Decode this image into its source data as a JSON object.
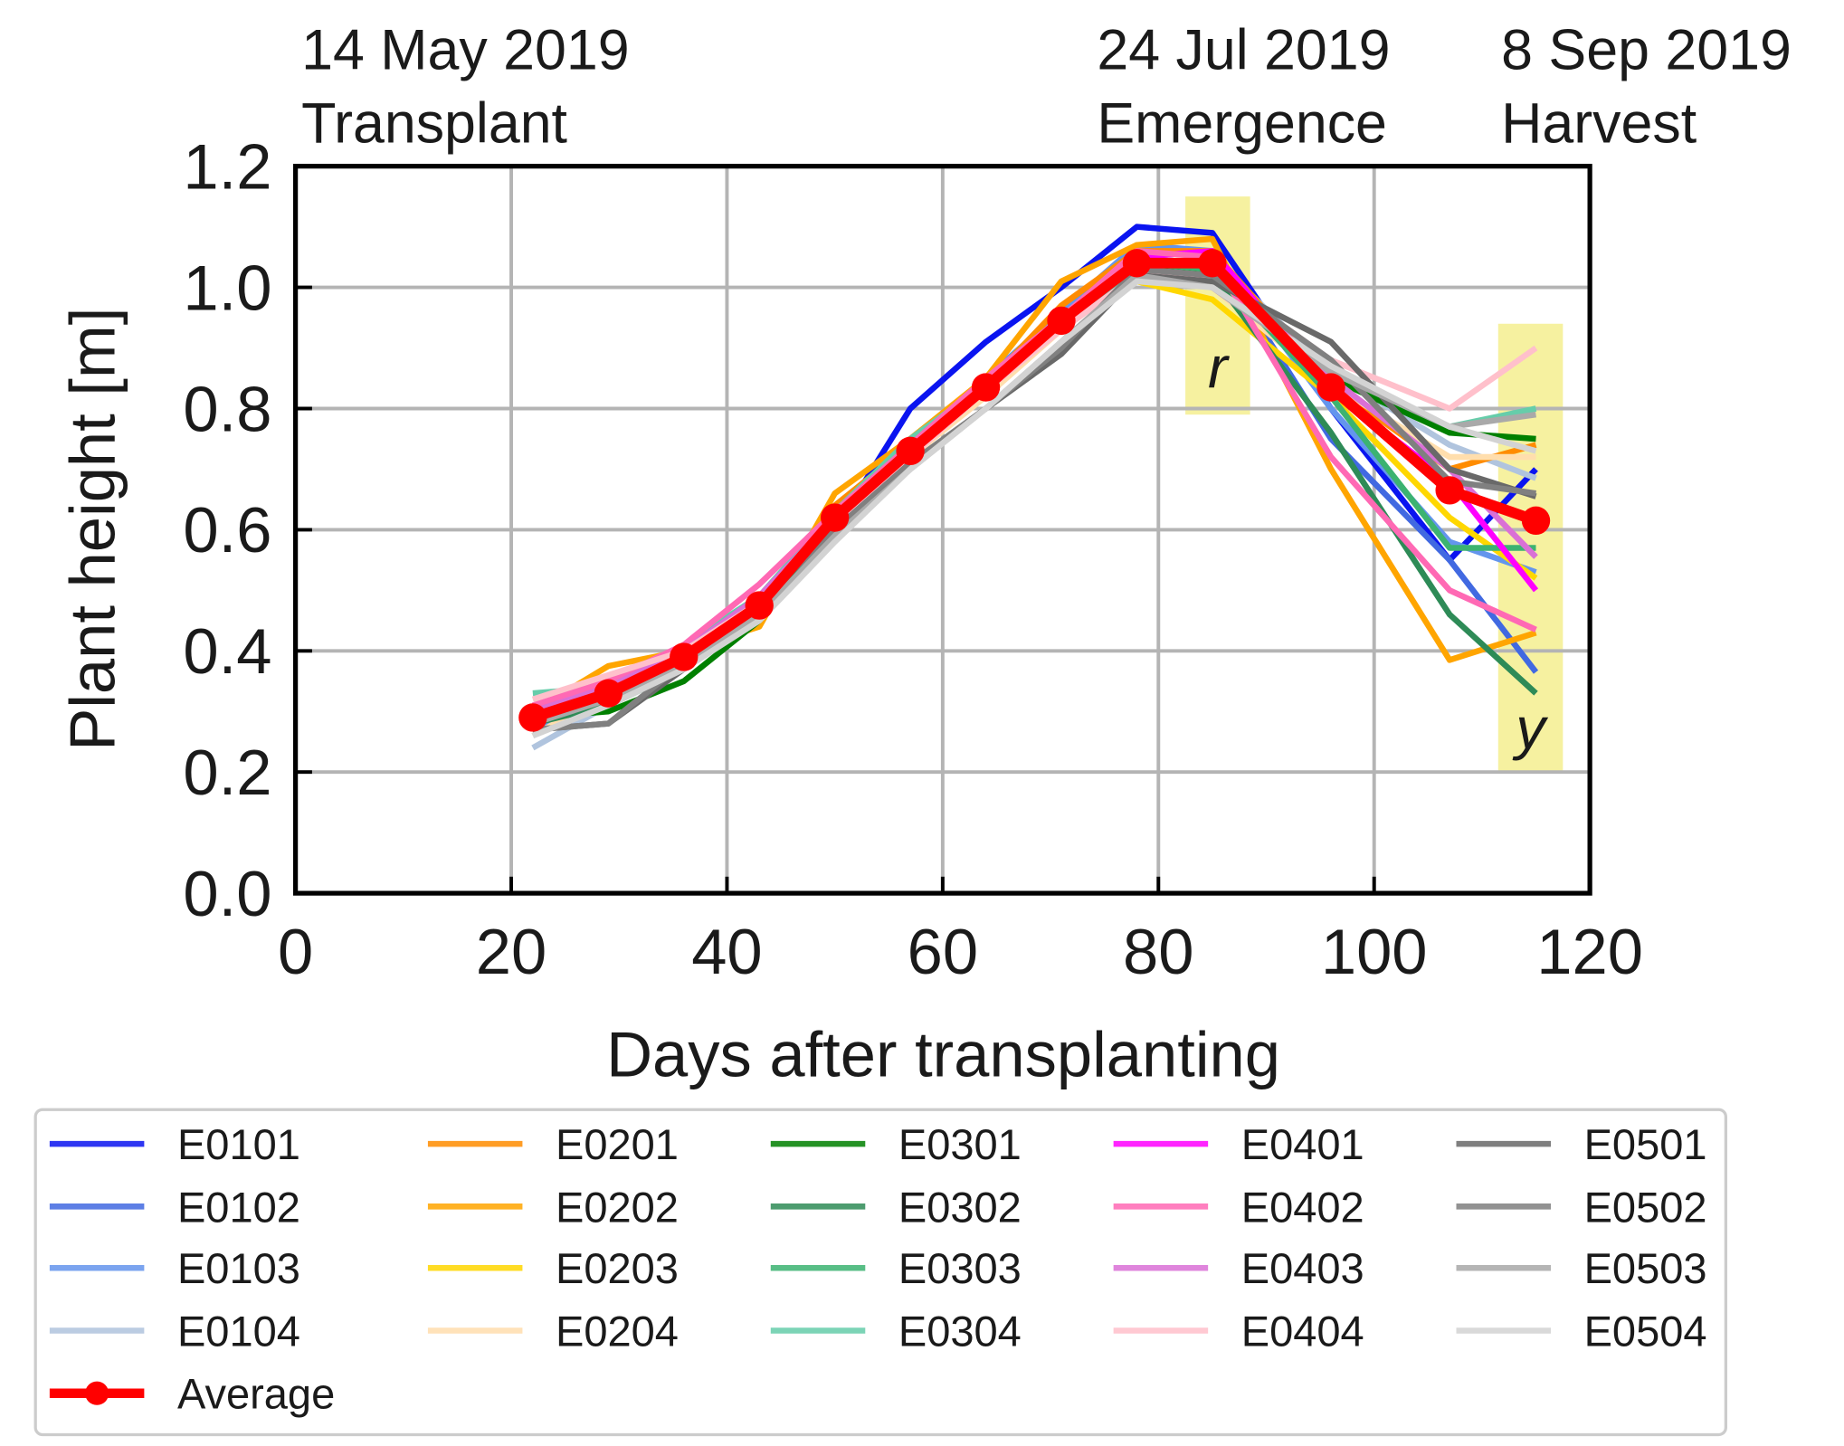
{
  "chart_data": {
    "type": "line",
    "xlabel": "Days after transplanting",
    "ylabel": "Plant height [m]",
    "xlim": [
      0,
      120
    ],
    "ylim": [
      0,
      1.2
    ],
    "xticks": [
      0,
      20,
      40,
      60,
      80,
      100,
      120
    ],
    "yticks": [
      "0.0",
      "0.2",
      "0.4",
      "0.6",
      "0.8",
      "1.0",
      "1.2"
    ],
    "grid": true,
    "legend_position": "bottom",
    "top_annotations": [
      {
        "date": "14 May 2019",
        "event": "Transplant"
      },
      {
        "date": "24 Jul 2019",
        "event": "Emergence"
      },
      {
        "date": "8 Sep 2019",
        "event": "Harvest"
      }
    ],
    "highlight_regions": [
      {
        "label": "r",
        "x_range": [
          82.5,
          88.5
        ],
        "y_range": [
          0.79,
          1.15
        ],
        "color": "#f5f096"
      },
      {
        "label": "y",
        "x_range": [
          111.5,
          117.5
        ],
        "y_range": [
          0.2,
          0.94
        ],
        "color": "#f5f096"
      }
    ],
    "x": [
      22,
      29,
      36,
      43,
      50,
      57,
      64,
      71,
      78,
      85,
      96,
      107,
      115
    ],
    "series": [
      {
        "name": "E0101",
        "color": "#0a14f0",
        "values": [
          0.28,
          0.32,
          0.39,
          0.47,
          0.6,
          0.8,
          0.91,
          1.0,
          1.1,
          1.09,
          0.8,
          0.55,
          0.7
        ]
      },
      {
        "name": "E0102",
        "color": "#4169e1",
        "values": [
          0.28,
          0.31,
          0.38,
          0.46,
          0.6,
          0.73,
          0.84,
          0.95,
          1.05,
          1.06,
          0.75,
          0.55,
          0.365
        ]
      },
      {
        "name": "E0103",
        "color": "#6495ed",
        "values": [
          0.27,
          0.32,
          0.38,
          0.47,
          0.61,
          0.74,
          0.85,
          0.96,
          1.07,
          1.06,
          0.8,
          0.58,
          0.53
        ]
      },
      {
        "name": "E0104",
        "color": "#b0c4de",
        "values": [
          0.24,
          0.31,
          0.38,
          0.46,
          0.6,
          0.72,
          0.83,
          0.95,
          1.06,
          1.05,
          0.86,
          0.74,
          0.685
        ]
      },
      {
        "name": "E0201",
        "color": "#ff8c00",
        "values": [
          0.29,
          0.34,
          0.39,
          0.45,
          0.64,
          0.74,
          0.84,
          0.97,
          1.06,
          1.06,
          0.84,
          0.7,
          0.74
        ]
      },
      {
        "name": "E0202",
        "color": "#ffa500",
        "values": [
          0.3,
          0.375,
          0.4,
          0.44,
          0.66,
          0.75,
          0.85,
          1.01,
          1.07,
          1.08,
          0.7,
          0.385,
          0.43
        ]
      },
      {
        "name": "E0203",
        "color": "#ffd700",
        "values": [
          0.29,
          0.34,
          0.39,
          0.47,
          0.62,
          0.73,
          0.83,
          0.94,
          1.01,
          0.98,
          0.82,
          0.62,
          0.52
        ]
      },
      {
        "name": "E0204",
        "color": "#ffdead",
        "values": [
          0.26,
          0.33,
          0.38,
          0.47,
          0.61,
          0.72,
          0.82,
          0.93,
          1.02,
          1.0,
          0.84,
          0.72,
          0.72
        ]
      },
      {
        "name": "E0301",
        "color": "#008000",
        "values": [
          0.29,
          0.3,
          0.35,
          0.45,
          0.61,
          0.73,
          0.83,
          0.94,
          1.03,
          1.03,
          0.85,
          0.76,
          0.75
        ]
      },
      {
        "name": "E0302",
        "color": "#2e8b57",
        "values": [
          0.28,
          0.31,
          0.37,
          0.46,
          0.61,
          0.73,
          0.83,
          0.94,
          1.03,
          1.02,
          0.76,
          0.46,
          0.33
        ]
      },
      {
        "name": "E0303",
        "color": "#3cb371",
        "values": [
          0.3,
          0.33,
          0.4,
          0.48,
          0.62,
          0.74,
          0.84,
          0.95,
          1.04,
          1.03,
          0.82,
          0.57,
          0.57
        ]
      },
      {
        "name": "E0304",
        "color": "#66cdaa",
        "values": [
          0.33,
          0.34,
          0.41,
          0.49,
          0.63,
          0.75,
          0.84,
          0.94,
          1.03,
          1.02,
          0.86,
          0.77,
          0.8
        ]
      },
      {
        "name": "E0401",
        "color": "#ff00ff",
        "values": [
          0.3,
          0.34,
          0.4,
          0.49,
          0.62,
          0.73,
          0.84,
          0.95,
          1.05,
          1.06,
          0.83,
          0.68,
          0.5
        ]
      },
      {
        "name": "E0402",
        "color": "#ff69b4",
        "values": [
          0.31,
          0.35,
          0.41,
          0.51,
          0.63,
          0.74,
          0.85,
          0.95,
          1.06,
          1.05,
          0.72,
          0.5,
          0.435
        ]
      },
      {
        "name": "E0403",
        "color": "#da70d6",
        "values": [
          0.3,
          0.34,
          0.4,
          0.49,
          0.62,
          0.73,
          0.84,
          0.95,
          1.04,
          1.04,
          0.85,
          0.7,
          0.555
        ]
      },
      {
        "name": "E0404",
        "color": "#ffc0cb",
        "values": [
          0.32,
          0.36,
          0.4,
          0.48,
          0.61,
          0.72,
          0.83,
          0.93,
          1.02,
          1.02,
          0.88,
          0.8,
          0.9
        ]
      },
      {
        "name": "E0501",
        "color": "#696969",
        "values": [
          0.27,
          0.28,
          0.37,
          0.48,
          0.6,
          0.71,
          0.8,
          0.89,
          1.02,
          1.01,
          0.91,
          0.7,
          0.655
        ]
      },
      {
        "name": "E0502",
        "color": "#808080",
        "values": [
          0.27,
          0.28,
          0.38,
          0.48,
          0.6,
          0.71,
          0.8,
          0.9,
          1.03,
          1.02,
          0.88,
          0.68,
          0.66
        ]
      },
      {
        "name": "E0503",
        "color": "#a9a9a9",
        "values": [
          0.28,
          0.32,
          0.38,
          0.46,
          0.59,
          0.7,
          0.8,
          0.91,
          1.02,
          1.0,
          0.86,
          0.77,
          0.79
        ]
      },
      {
        "name": "E0504",
        "color": "#d3d3d3",
        "values": [
          0.26,
          0.31,
          0.37,
          0.45,
          0.58,
          0.7,
          0.8,
          0.91,
          1.01,
          1.0,
          0.87,
          0.77,
          0.73
        ]
      },
      {
        "name": "Average",
        "color": "#ff0000",
        "marker": "circle",
        "values": [
          0.29,
          0.33,
          0.39,
          0.475,
          0.62,
          0.73,
          0.835,
          0.945,
          1.04,
          1.04,
          0.835,
          0.665,
          0.615
        ]
      }
    ]
  }
}
